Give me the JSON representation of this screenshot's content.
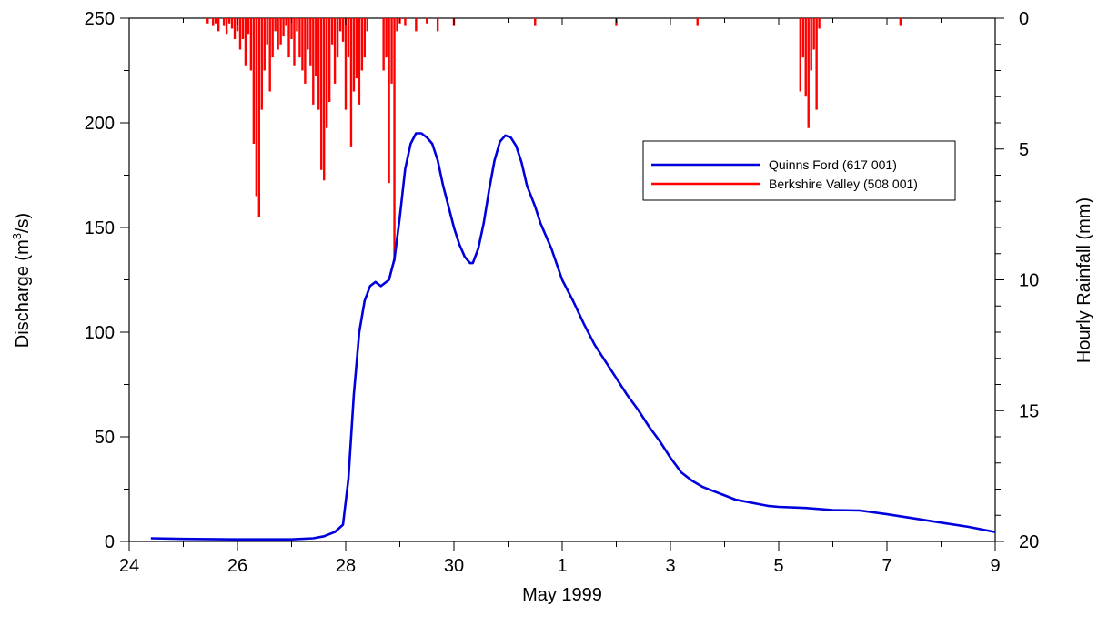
{
  "chart_data": {
    "type": "line",
    "title": "",
    "xlabel": "May 1999",
    "ylabel_left_prefix": "Discharge  (m",
    "ylabel_left_sup": "3",
    "ylabel_left_suffix": "/s)",
    "ylabel_right": "Hourly Rainfall  (mm)",
    "x_range_days": [
      0,
      16
    ],
    "ylim_left": [
      0,
      250
    ],
    "ylim_right_inverted": [
      0,
      20
    ],
    "grid": false,
    "legend_position": "top-right",
    "x_tick_labels": [
      "24",
      "26",
      "28",
      "30",
      "1",
      "3",
      "5",
      "7",
      "9"
    ],
    "left_tick_labels": [
      "0",
      "50",
      "100",
      "150",
      "200",
      "250"
    ],
    "right_tick_labels": [
      "0",
      "5",
      "10",
      "15",
      "20"
    ],
    "colors": {
      "discharge": "#0000dd",
      "rainfall": "#ff0000"
    },
    "series": [
      {
        "name": "Quinns Ford  (617 001)",
        "axis": "left",
        "kind": "line",
        "points": [
          [
            0.4,
            1.5
          ],
          [
            1.0,
            1.2
          ],
          [
            2.0,
            1.0
          ],
          [
            3.0,
            1.0
          ],
          [
            3.4,
            1.5
          ],
          [
            3.6,
            2.5
          ],
          [
            3.8,
            4.5
          ],
          [
            3.95,
            8
          ],
          [
            4.05,
            30
          ],
          [
            4.15,
            70
          ],
          [
            4.25,
            100
          ],
          [
            4.35,
            115
          ],
          [
            4.45,
            122
          ],
          [
            4.55,
            124
          ],
          [
            4.65,
            122
          ],
          [
            4.8,
            125
          ],
          [
            4.9,
            135
          ],
          [
            5.0,
            155
          ],
          [
            5.1,
            178
          ],
          [
            5.2,
            190
          ],
          [
            5.3,
            195
          ],
          [
            5.4,
            195
          ],
          [
            5.5,
            193
          ],
          [
            5.6,
            190
          ],
          [
            5.7,
            182
          ],
          [
            5.8,
            170
          ],
          [
            5.9,
            160
          ],
          [
            6.0,
            150
          ],
          [
            6.1,
            142
          ],
          [
            6.2,
            136
          ],
          [
            6.3,
            133
          ],
          [
            6.35,
            133
          ],
          [
            6.45,
            140
          ],
          [
            6.55,
            152
          ],
          [
            6.65,
            168
          ],
          [
            6.75,
            182
          ],
          [
            6.85,
            191
          ],
          [
            6.95,
            194
          ],
          [
            7.05,
            193
          ],
          [
            7.15,
            189
          ],
          [
            7.25,
            181
          ],
          [
            7.35,
            170
          ],
          [
            7.5,
            160
          ],
          [
            7.6,
            152
          ],
          [
            7.8,
            140
          ],
          [
            8.0,
            125
          ],
          [
            8.2,
            115
          ],
          [
            8.4,
            104
          ],
          [
            8.6,
            94
          ],
          [
            8.8,
            86
          ],
          [
            9.0,
            78
          ],
          [
            9.2,
            70
          ],
          [
            9.4,
            63
          ],
          [
            9.6,
            55
          ],
          [
            9.8,
            48
          ],
          [
            10.0,
            40
          ],
          [
            10.2,
            33
          ],
          [
            10.4,
            29
          ],
          [
            10.6,
            26
          ],
          [
            10.8,
            24
          ],
          [
            11.0,
            22
          ],
          [
            11.2,
            20
          ],
          [
            11.4,
            19
          ],
          [
            11.6,
            18
          ],
          [
            11.8,
            17
          ],
          [
            12.0,
            16.5
          ],
          [
            12.5,
            16
          ],
          [
            13.0,
            15
          ],
          [
            13.5,
            14.8
          ],
          [
            14.0,
            13
          ],
          [
            14.5,
            11
          ],
          [
            15.0,
            9
          ],
          [
            15.5,
            7
          ],
          [
            16.0,
            4.5
          ]
        ]
      },
      {
        "name": "Berkshire Valley  (508 001)",
        "axis": "right",
        "kind": "bars",
        "points": [
          [
            1.45,
            0.2
          ],
          [
            1.55,
            0.3
          ],
          [
            1.6,
            0.2
          ],
          [
            1.65,
            0.5
          ],
          [
            1.75,
            0.3
          ],
          [
            1.8,
            0.6
          ],
          [
            1.85,
            0.2
          ],
          [
            1.9,
            0.4
          ],
          [
            1.95,
            0.8
          ],
          [
            2.0,
            0.5
          ],
          [
            2.05,
            1.2
          ],
          [
            2.1,
            0.8
          ],
          [
            2.15,
            1.8
          ],
          [
            2.2,
            0.6
          ],
          [
            2.25,
            2.0
          ],
          [
            2.3,
            4.8
          ],
          [
            2.35,
            6.8
          ],
          [
            2.4,
            7.6
          ],
          [
            2.45,
            3.5
          ],
          [
            2.5,
            2.0
          ],
          [
            2.55,
            1.0
          ],
          [
            2.6,
            2.8
          ],
          [
            2.65,
            1.5
          ],
          [
            2.7,
            0.5
          ],
          [
            2.75,
            1.2
          ],
          [
            2.8,
            1.0
          ],
          [
            2.85,
            0.7
          ],
          [
            2.9,
            0.3
          ],
          [
            2.95,
            1.5
          ],
          [
            3.0,
            0.8
          ],
          [
            3.05,
            1.8
          ],
          [
            3.1,
            0.5
          ],
          [
            3.15,
            1.5
          ],
          [
            3.2,
            2.0
          ],
          [
            3.25,
            2.5
          ],
          [
            3.3,
            1.2
          ],
          [
            3.35,
            1.8
          ],
          [
            3.4,
            3.3
          ],
          [
            3.45,
            2.2
          ],
          [
            3.5,
            3.5
          ],
          [
            3.55,
            5.8
          ],
          [
            3.6,
            6.2
          ],
          [
            3.65,
            4.2
          ],
          [
            3.7,
            3.2
          ],
          [
            3.75,
            1.0
          ],
          [
            3.8,
            2.5
          ],
          [
            3.85,
            1.5
          ],
          [
            3.9,
            0.5
          ],
          [
            3.95,
            0.9
          ],
          [
            4.0,
            3.5
          ],
          [
            4.05,
            1.5
          ],
          [
            4.1,
            4.9
          ],
          [
            4.15,
            2.8
          ],
          [
            4.2,
            2.3
          ],
          [
            4.25,
            3.3
          ],
          [
            4.3,
            2.0
          ],
          [
            4.35,
            1.5
          ],
          [
            4.4,
            0.5
          ],
          [
            4.7,
            2.0
          ],
          [
            4.75,
            1.5
          ],
          [
            4.8,
            6.3
          ],
          [
            4.85,
            2.5
          ],
          [
            4.9,
            9.3
          ],
          [
            4.95,
            0.5
          ],
          [
            5.0,
            0.2
          ],
          [
            5.1,
            0.3
          ],
          [
            5.3,
            0.5
          ],
          [
            5.5,
            0.2
          ],
          [
            5.7,
            0.5
          ],
          [
            6.0,
            0.3
          ],
          [
            7.5,
            0.3
          ],
          [
            9.0,
            0.3
          ],
          [
            10.5,
            0.3
          ],
          [
            12.4,
            2.8
          ],
          [
            12.45,
            1.5
          ],
          [
            12.5,
            3.0
          ],
          [
            12.55,
            4.2
          ],
          [
            12.6,
            2.0
          ],
          [
            12.65,
            1.2
          ],
          [
            12.7,
            3.5
          ],
          [
            12.75,
            0.4
          ],
          [
            14.25,
            0.3
          ]
        ]
      }
    ]
  }
}
